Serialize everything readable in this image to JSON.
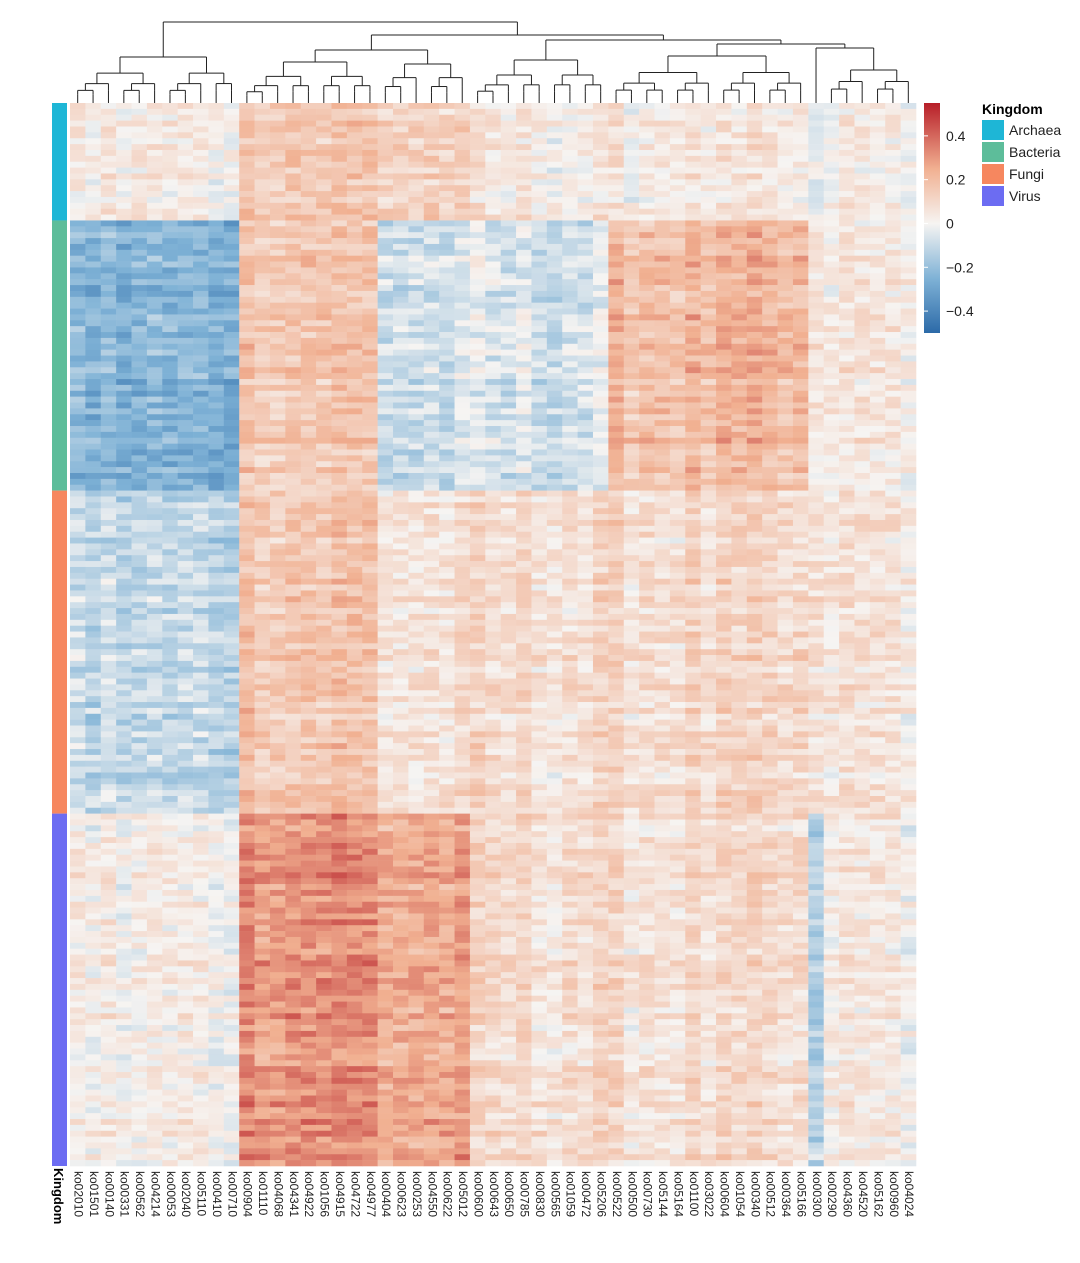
{
  "chart_data": {
    "type": "heatmap",
    "columns": [
      "ko02010",
      "ko01501",
      "ko00140",
      "ko00331",
      "ko00562",
      "ko04214",
      "ko00053",
      "ko02040",
      "ko05110",
      "ko00410",
      "ko00710",
      "ko00904",
      "ko01110",
      "ko04068",
      "ko04341",
      "ko04922",
      "ko01056",
      "ko04915",
      "ko04722",
      "ko04977",
      "ko00404",
      "ko00623",
      "ko00253",
      "ko04550",
      "ko00622",
      "ko05012",
      "ko00600",
      "ko00643",
      "ko00650",
      "ko00785",
      "ko00830",
      "ko00565",
      "ko01059",
      "ko00472",
      "ko05206",
      "ko00522",
      "ko00500",
      "ko00730",
      "ko05144",
      "ko05164",
      "ko01100",
      "ko03022",
      "ko00604",
      "ko01054",
      "ko00340",
      "ko00512",
      "ko00364",
      "ko05166",
      "ko00300",
      "ko00290",
      "ko04360",
      "ko04520",
      "ko05162",
      "ko00960",
      "ko04024"
    ],
    "row_annotation": {
      "name": "Kingdom",
      "groups": [
        {
          "label": "Archaea",
          "rows": 20,
          "color": "#1eb6d6"
        },
        {
          "label": "Bacteria",
          "rows": 46,
          "color": "#5dbd9a"
        },
        {
          "label": "Fungi",
          "rows": 55,
          "color": "#f6875f"
        },
        {
          "label": "Virus",
          "rows": 60,
          "color": "#6c6cf2"
        }
      ]
    },
    "column_clusters": [
      {
        "name": "c1",
        "start": 0,
        "end": 10,
        "profile": {
          "Archaea": 0.02,
          "Bacteria": -0.24,
          "Fungi": -0.11,
          "Virus": 0.02
        }
      },
      {
        "name": "c2",
        "start": 11,
        "end": 19,
        "profile": {
          "Archaea": 0.16,
          "Bacteria": 0.17,
          "Fungi": 0.17,
          "Virus": 0.32
        }
      },
      {
        "name": "c3",
        "start": 20,
        "end": 25,
        "profile": {
          "Archaea": 0.12,
          "Bacteria": -0.08,
          "Fungi": 0.06,
          "Virus": 0.26
        }
      },
      {
        "name": "c4",
        "start": 26,
        "end": 34,
        "profile": {
          "Archaea": 0.03,
          "Bacteria": -0.07,
          "Fungi": 0.08,
          "Virus": 0.09
        }
      },
      {
        "name": "c5",
        "start": 35,
        "end": 47,
        "profile": {
          "Archaea": 0.03,
          "Bacteria": 0.2,
          "Fungi": 0.09,
          "Virus": 0.08
        }
      },
      {
        "name": "c6",
        "start": 48,
        "end": 48,
        "profile": {
          "Archaea": -0.05,
          "Bacteria": 0.03,
          "Fungi": 0.04,
          "Virus": -0.17
        }
      },
      {
        "name": "c7",
        "start": 49,
        "end": 54,
        "profile": {
          "Archaea": 0.02,
          "Bacteria": 0.05,
          "Fungi": 0.06,
          "Virus": 0.04
        }
      }
    ],
    "color_scale": {
      "min": -0.5,
      "max": 0.55,
      "stops": [
        {
          "value": -0.5,
          "color": "#2c6aa8"
        },
        {
          "value": -0.25,
          "color": "#7fb2d6"
        },
        {
          "value": 0,
          "color": "#f6f4f2"
        },
        {
          "value": 0.25,
          "color": "#f1b091"
        },
        {
          "value": 0.55,
          "color": "#b71e28"
        }
      ]
    },
    "legend": {
      "title": "Kingdom",
      "colorbar_ticks": [
        {
          "value": 0.4,
          "label": "0.4"
        },
        {
          "value": 0.2,
          "label": "0.2"
        },
        {
          "value": 0,
          "label": "0"
        },
        {
          "value": -0.2,
          "label": "−0.2"
        },
        {
          "value": -0.4,
          "label": "−0.4"
        }
      ],
      "placement": "right"
    },
    "annotation_axis_label": "Kingdom",
    "dendrogram": "top"
  }
}
